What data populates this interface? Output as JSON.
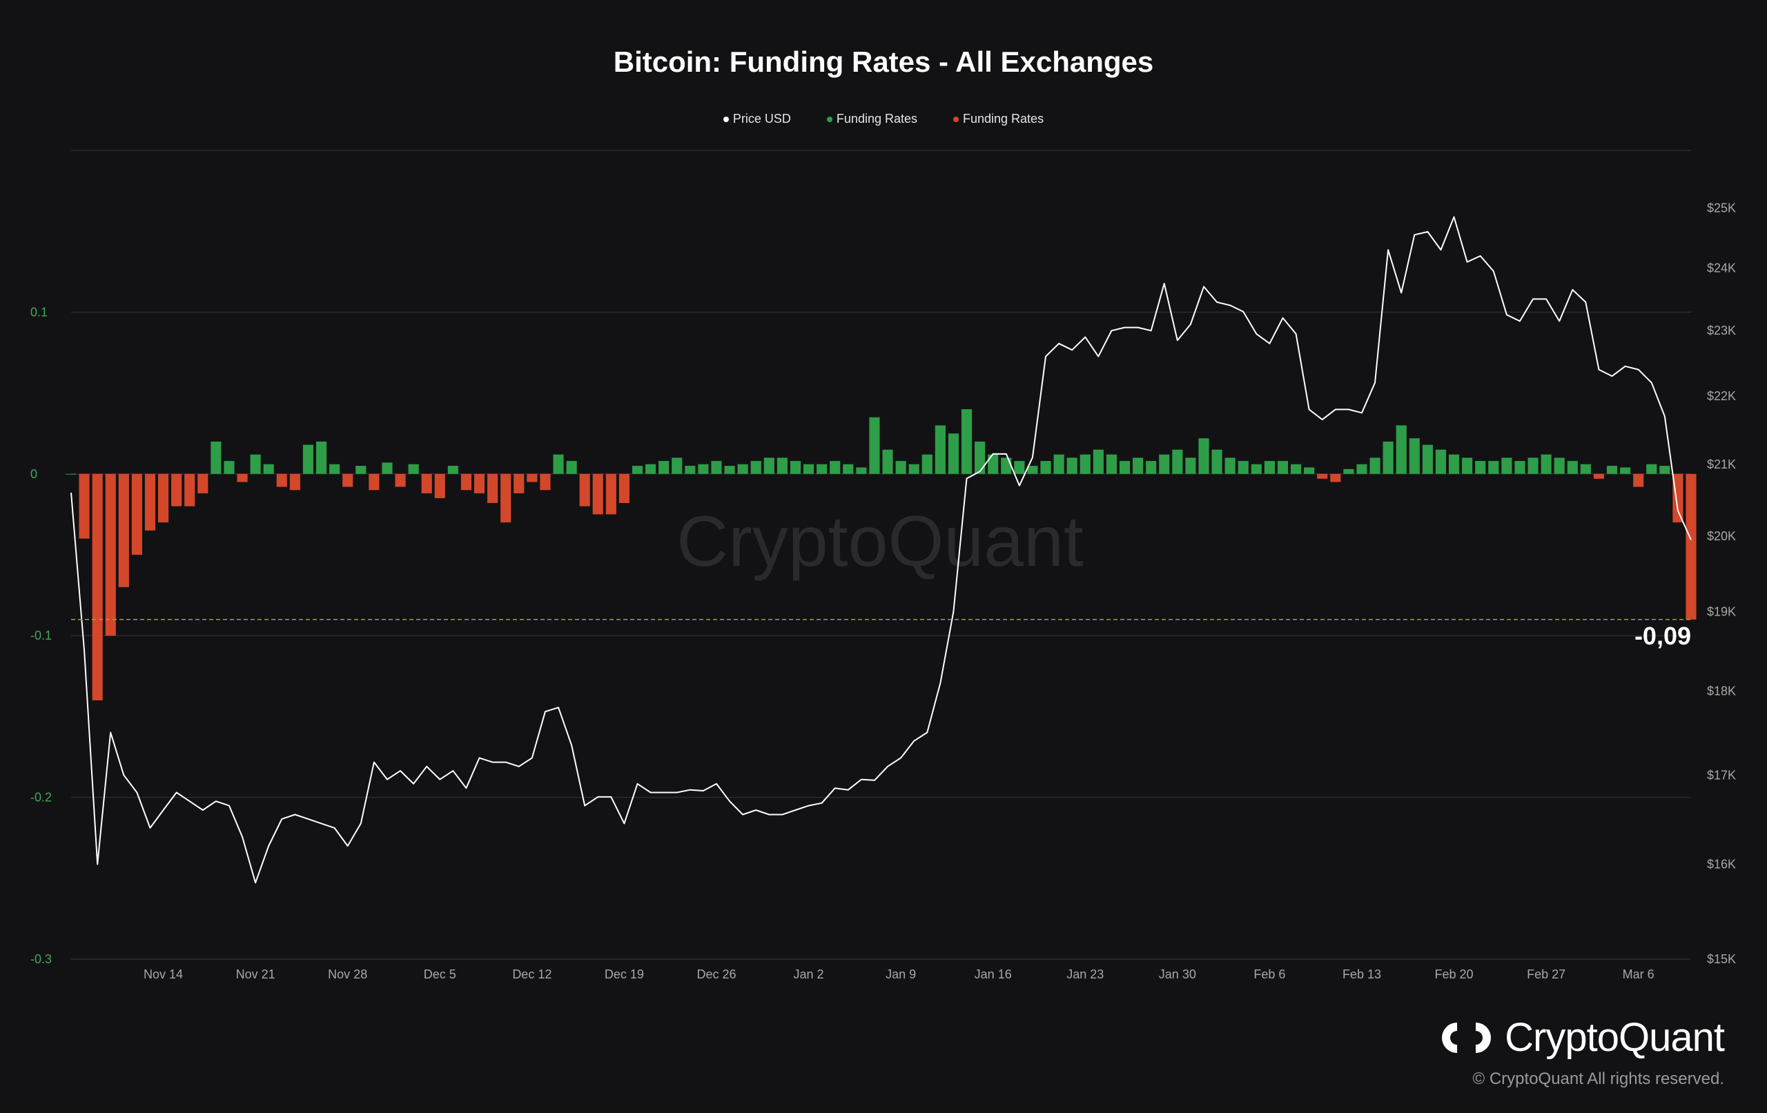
{
  "chart_data": {
    "type": "bar",
    "title": "Bitcoin: Funding Rates - All Exchanges",
    "legend": [
      {
        "name": "Price USD",
        "color": "#ffffff"
      },
      {
        "name": "Funding Rates",
        "color": "#2e9e48"
      },
      {
        "name": "Funding Rates",
        "color": "#d4472b"
      }
    ],
    "legend_position": "top-center",
    "grid": true,
    "x_axis": {
      "range": [
        "2022-11-07",
        "2023-03-10"
      ],
      "tick_labels": [
        "Nov 14",
        "Nov 21",
        "Nov 28",
        "Dec 5",
        "Dec 12",
        "Dec 19",
        "Dec 26",
        "Jan 2",
        "Jan 9",
        "Jan 16",
        "Jan 23",
        "Jan 30",
        "Feb 6",
        "Feb 13",
        "Feb 20",
        "Feb 27",
        "Mar 6"
      ]
    },
    "y_axis_left": {
      "label": "",
      "ylim": [
        -0.3,
        0.2
      ],
      "tick_labels": [
        "0.1",
        "0",
        "-0.1",
        "-0.2",
        "-0.3"
      ],
      "tick_values": [
        0.1,
        0,
        -0.1,
        -0.2,
        -0.3
      ]
    },
    "y_axis_right": {
      "label": "",
      "ylim": [
        15000,
        26000
      ],
      "scale": "log",
      "tick_labels": [
        "$25K",
        "$24K",
        "$23K",
        "$22K",
        "$21K",
        "$20K",
        "$19K",
        "$18K",
        "$17K",
        "$16K",
        "$15K"
      ],
      "tick_values": [
        25000,
        24000,
        23000,
        22000,
        21000,
        20000,
        19000,
        18000,
        17000,
        16000,
        15000
      ]
    },
    "funding_rates": {
      "positive_color": "#2e9e48",
      "negative_color": "#d4472b",
      "points": [
        [
          "2022-11-07",
          0.0
        ],
        [
          "2022-11-08",
          -0.04
        ],
        [
          "2022-11-09",
          -0.14
        ],
        [
          "2022-11-10",
          -0.1
        ],
        [
          "2022-11-11",
          -0.07
        ],
        [
          "2022-11-12",
          -0.05
        ],
        [
          "2022-11-13",
          -0.035
        ],
        [
          "2022-11-14",
          -0.03
        ],
        [
          "2022-11-15",
          -0.02
        ],
        [
          "2022-11-16",
          -0.02
        ],
        [
          "2022-11-17",
          -0.012
        ],
        [
          "2022-11-18",
          0.02
        ],
        [
          "2022-11-19",
          0.008
        ],
        [
          "2022-11-20",
          -0.005
        ],
        [
          "2022-11-21",
          0.012
        ],
        [
          "2022-11-22",
          0.006
        ],
        [
          "2022-11-23",
          -0.008
        ],
        [
          "2022-11-24",
          -0.01
        ],
        [
          "2022-11-25",
          0.018
        ],
        [
          "2022-11-26",
          0.02
        ],
        [
          "2022-11-27",
          0.006
        ],
        [
          "2022-11-28",
          -0.008
        ],
        [
          "2022-11-29",
          0.005
        ],
        [
          "2022-11-30",
          -0.01
        ],
        [
          "2022-12-01",
          0.007
        ],
        [
          "2022-12-02",
          -0.008
        ],
        [
          "2022-12-03",
          0.006
        ],
        [
          "2022-12-04",
          -0.012
        ],
        [
          "2022-12-05",
          -0.015
        ],
        [
          "2022-12-06",
          0.005
        ],
        [
          "2022-12-07",
          -0.01
        ],
        [
          "2022-12-08",
          -0.012
        ],
        [
          "2022-12-09",
          -0.018
        ],
        [
          "2022-12-10",
          -0.03
        ],
        [
          "2022-12-11",
          -0.012
        ],
        [
          "2022-12-12",
          -0.005
        ],
        [
          "2022-12-13",
          -0.01
        ],
        [
          "2022-12-14",
          0.012
        ],
        [
          "2022-12-15",
          0.008
        ],
        [
          "2022-12-16",
          -0.02
        ],
        [
          "2022-12-17",
          -0.025
        ],
        [
          "2022-12-18",
          -0.025
        ],
        [
          "2022-12-19",
          -0.018
        ],
        [
          "2022-12-20",
          0.005
        ],
        [
          "2022-12-21",
          0.006
        ],
        [
          "2022-12-22",
          0.008
        ],
        [
          "2022-12-23",
          0.01
        ],
        [
          "2022-12-24",
          0.005
        ],
        [
          "2022-12-25",
          0.006
        ],
        [
          "2022-12-26",
          0.008
        ],
        [
          "2022-12-27",
          0.005
        ],
        [
          "2022-12-28",
          0.006
        ],
        [
          "2022-12-29",
          0.008
        ],
        [
          "2022-12-30",
          0.01
        ],
        [
          "2022-12-31",
          0.01
        ],
        [
          "2023-01-01",
          0.008
        ],
        [
          "2023-01-02",
          0.006
        ],
        [
          "2023-01-03",
          0.006
        ],
        [
          "2023-01-04",
          0.008
        ],
        [
          "2023-01-05",
          0.006
        ],
        [
          "2023-01-06",
          0.004
        ],
        [
          "2023-01-07",
          0.035
        ],
        [
          "2023-01-08",
          0.015
        ],
        [
          "2023-01-09",
          0.008
        ],
        [
          "2023-01-10",
          0.006
        ],
        [
          "2023-01-11",
          0.012
        ],
        [
          "2023-01-12",
          0.03
        ],
        [
          "2023-01-13",
          0.025
        ],
        [
          "2023-01-14",
          0.04
        ],
        [
          "2023-01-15",
          0.02
        ],
        [
          "2023-01-16",
          0.012
        ],
        [
          "2023-01-17",
          0.01
        ],
        [
          "2023-01-18",
          0.008
        ],
        [
          "2023-01-19",
          0.005
        ],
        [
          "2023-01-20",
          0.008
        ],
        [
          "2023-01-21",
          0.012
        ],
        [
          "2023-01-22",
          0.01
        ],
        [
          "2023-01-23",
          0.012
        ],
        [
          "2023-01-24",
          0.015
        ],
        [
          "2023-01-25",
          0.012
        ],
        [
          "2023-01-26",
          0.008
        ],
        [
          "2023-01-27",
          0.01
        ],
        [
          "2023-01-28",
          0.008
        ],
        [
          "2023-01-29",
          0.012
        ],
        [
          "2023-01-30",
          0.015
        ],
        [
          "2023-01-31",
          0.01
        ],
        [
          "2023-02-01",
          0.022
        ],
        [
          "2023-02-02",
          0.015
        ],
        [
          "2023-02-03",
          0.01
        ],
        [
          "2023-02-04",
          0.008
        ],
        [
          "2023-02-05",
          0.006
        ],
        [
          "2023-02-06",
          0.008
        ],
        [
          "2023-02-07",
          0.008
        ],
        [
          "2023-02-08",
          0.006
        ],
        [
          "2023-02-09",
          0.004
        ],
        [
          "2023-02-10",
          -0.003
        ],
        [
          "2023-02-11",
          -0.005
        ],
        [
          "2023-02-12",
          0.003
        ],
        [
          "2023-02-13",
          0.006
        ],
        [
          "2023-02-14",
          0.01
        ],
        [
          "2023-02-15",
          0.02
        ],
        [
          "2023-02-16",
          0.03
        ],
        [
          "2023-02-17",
          0.022
        ],
        [
          "2023-02-18",
          0.018
        ],
        [
          "2023-02-19",
          0.015
        ],
        [
          "2023-02-20",
          0.012
        ],
        [
          "2023-02-21",
          0.01
        ],
        [
          "2023-02-22",
          0.008
        ],
        [
          "2023-02-23",
          0.008
        ],
        [
          "2023-02-24",
          0.01
        ],
        [
          "2023-02-25",
          0.008
        ],
        [
          "2023-02-26",
          0.01
        ],
        [
          "2023-02-27",
          0.012
        ],
        [
          "2023-02-28",
          0.01
        ],
        [
          "2023-03-01",
          0.008
        ],
        [
          "2023-03-02",
          0.006
        ],
        [
          "2023-03-03",
          -0.003
        ],
        [
          "2023-03-04",
          0.005
        ],
        [
          "2023-03-05",
          0.004
        ],
        [
          "2023-03-06",
          -0.008
        ],
        [
          "2023-03-07",
          0.006
        ],
        [
          "2023-03-08",
          0.005
        ],
        [
          "2023-03-09",
          -0.03
        ],
        [
          "2023-03-10",
          -0.09
        ]
      ]
    },
    "price_usd": {
      "color": "#ffffff",
      "points": [
        [
          "2022-11-07",
          20600
        ],
        [
          "2022-11-08",
          18500
        ],
        [
          "2022-11-09",
          16000
        ],
        [
          "2022-11-10",
          17500
        ],
        [
          "2022-11-11",
          17000
        ],
        [
          "2022-11-12",
          16800
        ],
        [
          "2022-11-13",
          16400
        ],
        [
          "2022-11-14",
          16600
        ],
        [
          "2022-11-15",
          16800
        ],
        [
          "2022-11-16",
          16700
        ],
        [
          "2022-11-17",
          16600
        ],
        [
          "2022-11-18",
          16700
        ],
        [
          "2022-11-19",
          16650
        ],
        [
          "2022-11-20",
          16300
        ],
        [
          "2022-11-21",
          15800
        ],
        [
          "2022-11-22",
          16200
        ],
        [
          "2022-11-23",
          16500
        ],
        [
          "2022-11-24",
          16550
        ],
        [
          "2022-11-25",
          16500
        ],
        [
          "2022-11-26",
          16450
        ],
        [
          "2022-11-27",
          16400
        ],
        [
          "2022-11-28",
          16200
        ],
        [
          "2022-11-29",
          16450
        ],
        [
          "2022-11-30",
          17150
        ],
        [
          "2022-12-01",
          16950
        ],
        [
          "2022-12-02",
          17050
        ],
        [
          "2022-12-03",
          16900
        ],
        [
          "2022-12-04",
          17100
        ],
        [
          "2022-12-05",
          16950
        ],
        [
          "2022-12-06",
          17050
        ],
        [
          "2022-12-07",
          16850
        ],
        [
          "2022-12-08",
          17200
        ],
        [
          "2022-12-09",
          17150
        ],
        [
          "2022-12-10",
          17150
        ],
        [
          "2022-12-11",
          17100
        ],
        [
          "2022-12-12",
          17200
        ],
        [
          "2022-12-13",
          17750
        ],
        [
          "2022-12-14",
          17800
        ],
        [
          "2022-12-15",
          17350
        ],
        [
          "2022-12-16",
          16650
        ],
        [
          "2022-12-17",
          16750
        ],
        [
          "2022-12-18",
          16750
        ],
        [
          "2022-12-19",
          16450
        ],
        [
          "2022-12-20",
          16900
        ],
        [
          "2022-12-21",
          16800
        ],
        [
          "2022-12-22",
          16800
        ],
        [
          "2022-12-23",
          16800
        ],
        [
          "2022-12-24",
          16830
        ],
        [
          "2022-12-25",
          16820
        ],
        [
          "2022-12-26",
          16900
        ],
        [
          "2022-12-27",
          16700
        ],
        [
          "2022-12-28",
          16550
        ],
        [
          "2022-12-29",
          16600
        ],
        [
          "2022-12-30",
          16550
        ],
        [
          "2022-12-31",
          16550
        ],
        [
          "2023-01-01",
          16600
        ],
        [
          "2023-01-02",
          16650
        ],
        [
          "2023-01-03",
          16680
        ],
        [
          "2023-01-04",
          16850
        ],
        [
          "2023-01-05",
          16830
        ],
        [
          "2023-01-06",
          16950
        ],
        [
          "2023-01-07",
          16940
        ],
        [
          "2023-01-08",
          17100
        ],
        [
          "2023-01-09",
          17200
        ],
        [
          "2023-01-10",
          17400
        ],
        [
          "2023-01-11",
          17500
        ],
        [
          "2023-01-12",
          18100
        ],
        [
          "2023-01-13",
          19000
        ],
        [
          "2023-01-14",
          20800
        ],
        [
          "2023-01-15",
          20900
        ],
        [
          "2023-01-16",
          21150
        ],
        [
          "2023-01-17",
          21150
        ],
        [
          "2023-01-18",
          20700
        ],
        [
          "2023-01-19",
          21100
        ],
        [
          "2023-01-20",
          22600
        ],
        [
          "2023-01-21",
          22800
        ],
        [
          "2023-01-22",
          22700
        ],
        [
          "2023-01-23",
          22900
        ],
        [
          "2023-01-24",
          22600
        ],
        [
          "2023-01-25",
          23000
        ],
        [
          "2023-01-26",
          23050
        ],
        [
          "2023-01-27",
          23050
        ],
        [
          "2023-01-28",
          23000
        ],
        [
          "2023-01-29",
          23750
        ],
        [
          "2023-01-30",
          22850
        ],
        [
          "2023-01-31",
          23100
        ],
        [
          "2023-02-01",
          23700
        ],
        [
          "2023-02-02",
          23450
        ],
        [
          "2023-02-03",
          23400
        ],
        [
          "2023-02-04",
          23300
        ],
        [
          "2023-02-05",
          22950
        ],
        [
          "2023-02-06",
          22800
        ],
        [
          "2023-02-07",
          23200
        ],
        [
          "2023-02-08",
          22950
        ],
        [
          "2023-02-09",
          21800
        ],
        [
          "2023-02-10",
          21650
        ],
        [
          "2023-02-11",
          21800
        ],
        [
          "2023-02-12",
          21800
        ],
        [
          "2023-02-13",
          21750
        ],
        [
          "2023-02-14",
          22200
        ],
        [
          "2023-02-15",
          24300
        ],
        [
          "2023-02-16",
          23600
        ],
        [
          "2023-02-17",
          24550
        ],
        [
          "2023-02-18",
          24600
        ],
        [
          "2023-02-19",
          24300
        ],
        [
          "2023-02-20",
          24850
        ],
        [
          "2023-02-21",
          24100
        ],
        [
          "2023-02-22",
          24200
        ],
        [
          "2023-02-23",
          23950
        ],
        [
          "2023-02-24",
          23250
        ],
        [
          "2023-02-25",
          23150
        ],
        [
          "2023-02-26",
          23500
        ],
        [
          "2023-02-27",
          23500
        ],
        [
          "2023-02-28",
          23150
        ],
        [
          "2023-03-01",
          23650
        ],
        [
          "2023-03-02",
          23450
        ],
        [
          "2023-03-03",
          22400
        ],
        [
          "2023-03-04",
          22300
        ],
        [
          "2023-03-05",
          22450
        ],
        [
          "2023-03-06",
          22400
        ],
        [
          "2023-03-07",
          22200
        ],
        [
          "2023-03-08",
          21700
        ],
        [
          "2023-03-09",
          20350
        ],
        [
          "2023-03-10",
          19950
        ]
      ]
    },
    "reference_line": {
      "value": -0.09,
      "label": "-0,09",
      "color": "#9aa23a",
      "style": "dashed"
    }
  },
  "watermark": "CryptoQuant",
  "brand": {
    "name": "CryptoQuant",
    "copyright": "© CryptoQuant All rights reserved."
  }
}
